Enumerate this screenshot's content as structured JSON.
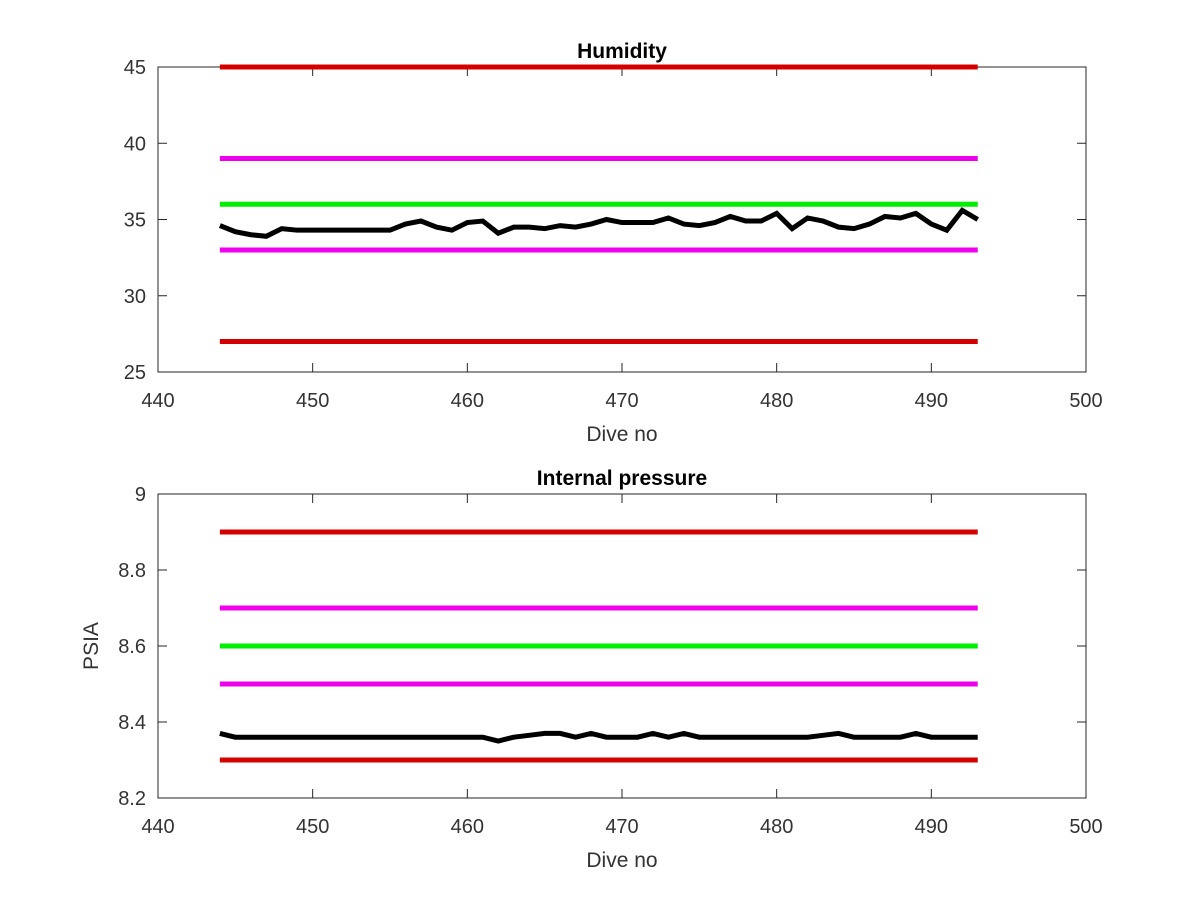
{
  "chart_data": [
    {
      "type": "line",
      "title": "Humidity",
      "xlabel": "Dive no",
      "ylabel": "",
      "xlim": [
        440,
        500
      ],
      "ylim": [
        25,
        45
      ],
      "xticks": [
        440,
        450,
        460,
        470,
        480,
        490,
        500
      ],
      "yticks": [
        25,
        30,
        35,
        40,
        45
      ],
      "grid": false,
      "series": [
        {
          "color": "#d40000",
          "x": [
            444,
            493
          ],
          "y": [
            45,
            45
          ]
        },
        {
          "color": "#ee00ee",
          "x": [
            444,
            493
          ],
          "y": [
            39,
            39
          ]
        },
        {
          "color": "#00ee00",
          "x": [
            444,
            493
          ],
          "y": [
            36,
            36
          ]
        },
        {
          "color": "#ee00ee",
          "x": [
            444,
            493
          ],
          "y": [
            33,
            33
          ]
        },
        {
          "color": "#d40000",
          "x": [
            444,
            493
          ],
          "y": [
            27,
            27
          ]
        },
        {
          "color": "#000000",
          "x": [
            444,
            445,
            446,
            447,
            448,
            449,
            450,
            451,
            452,
            453,
            454,
            455,
            456,
            457,
            458,
            459,
            460,
            461,
            462,
            463,
            464,
            465,
            466,
            467,
            468,
            469,
            470,
            471,
            472,
            473,
            474,
            475,
            476,
            477,
            478,
            479,
            480,
            481,
            482,
            483,
            484,
            485,
            486,
            487,
            488,
            489,
            490,
            491,
            492,
            493
          ],
          "y": [
            34.6,
            34.2,
            34.0,
            33.9,
            34.4,
            34.3,
            34.3,
            34.3,
            34.3,
            34.3,
            34.3,
            34.3,
            34.7,
            34.9,
            34.5,
            34.3,
            34.8,
            34.9,
            34.1,
            34.5,
            34.5,
            34.4,
            34.6,
            34.5,
            34.7,
            35.0,
            34.8,
            34.8,
            34.8,
            35.1,
            34.7,
            34.6,
            34.8,
            35.2,
            34.9,
            34.9,
            35.4,
            34.4,
            35.1,
            34.9,
            34.5,
            34.4,
            34.7,
            35.2,
            35.1,
            35.4,
            34.7,
            34.3,
            35.6,
            35.0
          ]
        }
      ]
    },
    {
      "type": "line",
      "title": "Internal pressure",
      "xlabel": "Dive no",
      "ylabel": "PSIA",
      "xlim": [
        440,
        500
      ],
      "ylim": [
        8.2,
        9.0
      ],
      "xticks": [
        440,
        450,
        460,
        470,
        480,
        490,
        500
      ],
      "yticks": [
        8.2,
        8.4,
        8.6,
        8.8,
        9.0
      ],
      "ytick_labels": [
        "8.2",
        "8.4",
        "8.6",
        "8.8",
        "9"
      ],
      "grid": false,
      "series": [
        {
          "color": "#d40000",
          "x": [
            444,
            493
          ],
          "y": [
            8.9,
            8.9
          ]
        },
        {
          "color": "#ee00ee",
          "x": [
            444,
            493
          ],
          "y": [
            8.7,
            8.7
          ]
        },
        {
          "color": "#00ee00",
          "x": [
            444,
            493
          ],
          "y": [
            8.6,
            8.6
          ]
        },
        {
          "color": "#ee00ee",
          "x": [
            444,
            493
          ],
          "y": [
            8.5,
            8.5
          ]
        },
        {
          "color": "#d40000",
          "x": [
            444,
            493
          ],
          "y": [
            8.3,
            8.3
          ]
        },
        {
          "color": "#000000",
          "x": [
            444,
            445,
            446,
            447,
            448,
            449,
            450,
            451,
            452,
            453,
            454,
            455,
            456,
            457,
            458,
            459,
            460,
            461,
            462,
            463,
            464,
            465,
            466,
            467,
            468,
            469,
            470,
            471,
            472,
            473,
            474,
            475,
            476,
            477,
            478,
            479,
            480,
            481,
            482,
            483,
            484,
            485,
            486,
            487,
            488,
            489,
            490,
            491,
            492,
            493
          ],
          "y": [
            8.37,
            8.36,
            8.36,
            8.36,
            8.36,
            8.36,
            8.36,
            8.36,
            8.36,
            8.36,
            8.36,
            8.36,
            8.36,
            8.36,
            8.36,
            8.36,
            8.36,
            8.36,
            8.35,
            8.36,
            8.365,
            8.37,
            8.37,
            8.36,
            8.37,
            8.36,
            8.36,
            8.36,
            8.37,
            8.36,
            8.37,
            8.36,
            8.36,
            8.36,
            8.36,
            8.36,
            8.36,
            8.36,
            8.36,
            8.365,
            8.37,
            8.36,
            8.36,
            8.36,
            8.36,
            8.37,
            8.36,
            8.36,
            8.36,
            8.36
          ]
        }
      ]
    }
  ]
}
